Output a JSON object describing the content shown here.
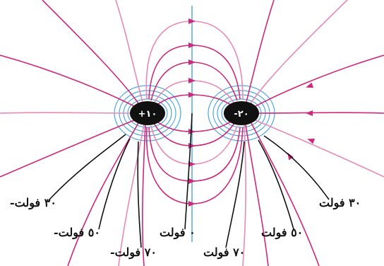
{
  "colors": {
    "field_line": "#d0287a",
    "field_line_faint": "#e889b6",
    "equipotential": "#4aa8df",
    "axis": "#3a9bd5",
    "charge": "#111111",
    "pointer": "#111111"
  },
  "charges": {
    "left": "+١٠",
    "right": "-٢٠"
  },
  "potential_labels": {
    "left_30": "-٣٠ فولت",
    "left_50": "-٥٠ فولت",
    "left_70": "-٧٠ فولت",
    "zero": "٠ فولت",
    "right_70": "٧٠ فولت",
    "right_50": "٥٠ فولت",
    "right_30": "٣٠ فولت"
  }
}
